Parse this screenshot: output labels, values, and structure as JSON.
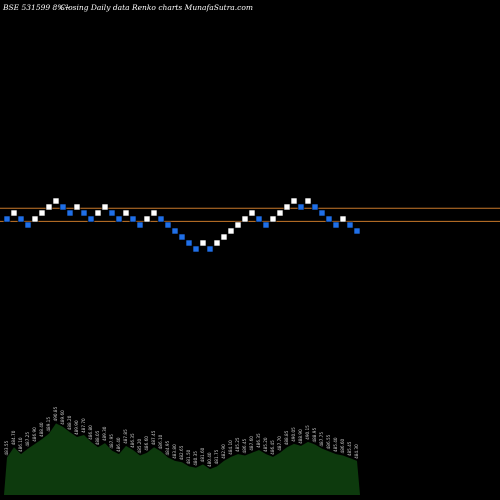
{
  "header": {
    "left": "BSE 531599 8%~",
    "right": "Closing Daily data  Renko  charts MunafaSutra.com"
  },
  "chart_data": {
    "type": "renko",
    "title": "Closing Daily data  Renko  charts MunafaSutra.com",
    "symbol": "BSE 531599 8%~",
    "bricks": [
      {
        "level": 0,
        "dir": "down"
      },
      {
        "level": 1,
        "dir": "up"
      },
      {
        "level": 0,
        "dir": "down"
      },
      {
        "level": -1,
        "dir": "down"
      },
      {
        "level": 0,
        "dir": "up"
      },
      {
        "level": 1,
        "dir": "up"
      },
      {
        "level": 2,
        "dir": "up"
      },
      {
        "level": 3,
        "dir": "up"
      },
      {
        "level": 2,
        "dir": "down"
      },
      {
        "level": 1,
        "dir": "down"
      },
      {
        "level": 2,
        "dir": "up"
      },
      {
        "level": 1,
        "dir": "down"
      },
      {
        "level": 0,
        "dir": "down"
      },
      {
        "level": 1,
        "dir": "up"
      },
      {
        "level": 2,
        "dir": "up"
      },
      {
        "level": 1,
        "dir": "down"
      },
      {
        "level": 0,
        "dir": "down"
      },
      {
        "level": 1,
        "dir": "up"
      },
      {
        "level": 0,
        "dir": "down"
      },
      {
        "level": -1,
        "dir": "down"
      },
      {
        "level": 0,
        "dir": "up"
      },
      {
        "level": 1,
        "dir": "up"
      },
      {
        "level": 0,
        "dir": "down"
      },
      {
        "level": -1,
        "dir": "down"
      },
      {
        "level": -2,
        "dir": "down"
      },
      {
        "level": -3,
        "dir": "down"
      },
      {
        "level": -4,
        "dir": "down"
      },
      {
        "level": -5,
        "dir": "down"
      },
      {
        "level": -4,
        "dir": "up"
      },
      {
        "level": -5,
        "dir": "down"
      },
      {
        "level": -4,
        "dir": "up"
      },
      {
        "level": -3,
        "dir": "up"
      },
      {
        "level": -2,
        "dir": "up"
      },
      {
        "level": -1,
        "dir": "up"
      },
      {
        "level": 0,
        "dir": "up"
      },
      {
        "level": 1,
        "dir": "up"
      },
      {
        "level": 0,
        "dir": "down"
      },
      {
        "level": -1,
        "dir": "down"
      },
      {
        "level": 0,
        "dir": "up"
      },
      {
        "level": 1,
        "dir": "up"
      },
      {
        "level": 2,
        "dir": "up"
      },
      {
        "level": 3,
        "dir": "up"
      },
      {
        "level": 2,
        "dir": "down"
      },
      {
        "level": 3,
        "dir": "up"
      },
      {
        "level": 2,
        "dir": "down"
      },
      {
        "level": 1,
        "dir": "down"
      },
      {
        "level": 0,
        "dir": "down"
      },
      {
        "level": -1,
        "dir": "down"
      },
      {
        "level": 0,
        "dir": "up"
      },
      {
        "level": -1,
        "dir": "down"
      },
      {
        "level": -2,
        "dir": "down"
      }
    ],
    "reference_lines": [
      {
        "level": 1.3,
        "color": "#c8782a"
      },
      {
        "level": -0.9,
        "color": "#c8782a"
      }
    ],
    "volume_area": [
      55,
      70,
      60,
      68,
      75,
      82,
      90,
      105,
      100,
      92,
      85,
      88,
      78,
      70,
      76,
      65,
      60,
      72,
      66,
      58,
      62,
      70,
      64,
      55,
      50,
      48,
      42,
      40,
      45,
      38,
      42,
      50,
      56,
      60,
      58,
      62,
      66,
      60,
      56,
      62,
      70,
      75,
      72,
      78,
      74,
      68,
      64,
      60,
      58,
      54,
      50
    ],
    "price_labels": [
      "483.55",
      "484.70",
      "486.10",
      "487.25",
      "486.90",
      "488.40",
      "489.15",
      "490.85",
      "489.60",
      "488.20",
      "489.90",
      "487.70",
      "486.80",
      "488.05",
      "489.30",
      "487.95",
      "486.40",
      "487.85",
      "486.35",
      "485.20",
      "486.60",
      "487.45",
      "486.10",
      "484.95",
      "483.80",
      "482.65",
      "481.50",
      "480.35",
      "481.60",
      "480.40",
      "481.75",
      "482.90",
      "484.10",
      "485.25",
      "486.45",
      "487.60",
      "486.35",
      "485.20",
      "486.45",
      "487.70",
      "488.85",
      "490.05",
      "488.90",
      "490.15",
      "488.95",
      "487.75",
      "486.55",
      "485.40",
      "486.60",
      "485.45",
      "484.30"
    ],
    "colors": {
      "up": "#ffffff",
      "down": "#1f6fe8",
      "volume": "#0d3a0d",
      "background": "#000000"
    }
  }
}
